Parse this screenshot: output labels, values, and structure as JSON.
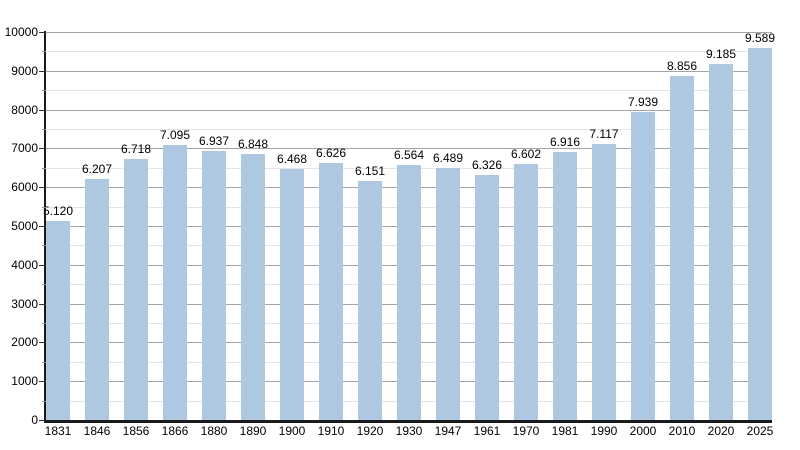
{
  "chart_data": {
    "type": "bar",
    "title": "",
    "xlabel": "",
    "ylabel": "",
    "categories": [
      "1831",
      "1846",
      "1856",
      "1866",
      "1880",
      "1890",
      "1900",
      "1910",
      "1920",
      "1930",
      "1947",
      "1961",
      "1970",
      "1981",
      "1990",
      "2000",
      "2010",
      "2020",
      "2025"
    ],
    "values": [
      5120,
      6207,
      6718,
      7095,
      6937,
      6848,
      6468,
      6626,
      6151,
      6564,
      6489,
      6326,
      6602,
      6916,
      7117,
      7939,
      8856,
      9185,
      9589
    ],
    "value_labels": [
      "5.120",
      "6.207",
      "6.718",
      "7.095",
      "6.937",
      "6.848",
      "6.468",
      "6.626",
      "6.151",
      "6.564",
      "6.489",
      "6.326",
      "6.602",
      "6.916",
      "7.117",
      "7.939",
      "8.856",
      "9.185",
      "9.589"
    ],
    "ylim": [
      0,
      10000
    ],
    "y_major_tick_step": 1000,
    "y_minor_tick_step": 500,
    "y_tick_labels": [
      "0",
      "1000",
      "2000",
      "3000",
      "4000",
      "5000",
      "6000",
      "7000",
      "8000",
      "9000",
      "10000"
    ],
    "grid": true,
    "legend_position": "none",
    "colors": {
      "bar_fill": "#aec8e2",
      "major_gridline": "#a4a4a4",
      "minor_gridline": "#e4e4e4",
      "axis_line": "#1a1a1a",
      "text": "#000000",
      "background": "#ffffff"
    }
  }
}
